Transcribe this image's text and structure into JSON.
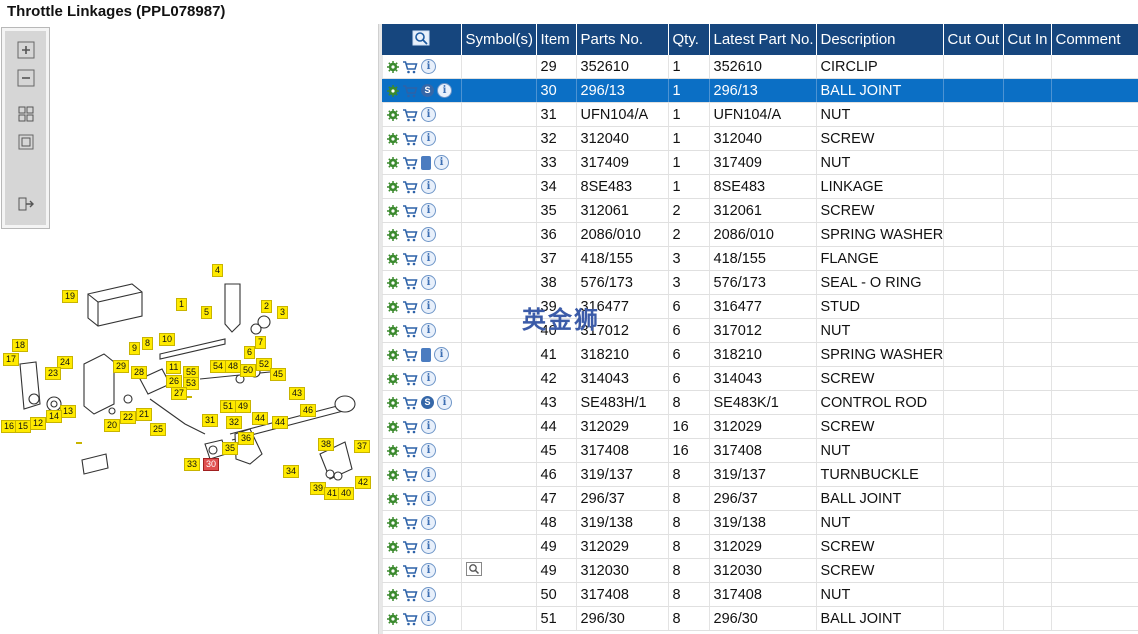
{
  "title": "Throttle Linkages (PPL078987)",
  "watermark": "英金狮",
  "toolbar": {
    "icons": [
      "zoom-in-icon",
      "zoom-out-icon",
      "fit-page-icon",
      "actual-size-icon",
      "export-icon"
    ]
  },
  "diagram": {
    "callouts": [
      "1",
      "2",
      "3",
      "4",
      "5",
      "6",
      "7",
      "8",
      "9",
      "10",
      "11",
      "12",
      "13",
      "14",
      "15",
      "16",
      "17",
      "18",
      "19",
      "20",
      "21",
      "22",
      "23",
      "24",
      "25",
      "26",
      "27",
      "28",
      "29",
      "30",
      "31",
      "32",
      "33",
      "34",
      "35",
      "36",
      "37",
      "38",
      "39",
      "40",
      "41",
      "42",
      "43",
      "44",
      "45",
      "45",
      "46",
      "47",
      "48",
      "49",
      "50",
      "51",
      "52",
      "53",
      "54",
      "55"
    ]
  },
  "table": {
    "headers": [
      "",
      "Symbol(s)",
      "Item",
      "Parts No.",
      "Qty.",
      "Latest Part No.",
      "Description",
      "Cut Out",
      "Cut In",
      "Comment"
    ],
    "rows": [
      {
        "icons": [
          "gear",
          "cart",
          "info"
        ],
        "symbol": "",
        "item": "29",
        "part": "352610",
        "qty": "1",
        "latest": "352610",
        "desc": "CIRCLIP",
        "selected": false
      },
      {
        "icons": [
          "gear",
          "cart",
          "s",
          "info"
        ],
        "symbol": "",
        "item": "30",
        "part": "296/13",
        "qty": "1",
        "latest": "296/13",
        "desc": "BALL JOINT",
        "selected": true
      },
      {
        "icons": [
          "gear",
          "cart",
          "info"
        ],
        "symbol": "",
        "item": "31",
        "part": "UFN104/A",
        "qty": "1",
        "latest": "UFN104/A",
        "desc": "NUT",
        "selected": false
      },
      {
        "icons": [
          "gear",
          "cart",
          "info"
        ],
        "symbol": "",
        "item": "32",
        "part": "312040",
        "qty": "1",
        "latest": "312040",
        "desc": "SCREW",
        "selected": false
      },
      {
        "icons": [
          "gear",
          "cart",
          "book",
          "info"
        ],
        "symbol": "",
        "item": "33",
        "part": "317409",
        "qty": "1",
        "latest": "317409",
        "desc": "NUT",
        "selected": false
      },
      {
        "icons": [
          "gear",
          "cart",
          "info"
        ],
        "symbol": "",
        "item": "34",
        "part": "8SE483",
        "qty": "1",
        "latest": "8SE483",
        "desc": "LINKAGE",
        "selected": false
      },
      {
        "icons": [
          "gear",
          "cart",
          "info"
        ],
        "symbol": "",
        "item": "35",
        "part": "312061",
        "qty": "2",
        "latest": "312061",
        "desc": "SCREW",
        "selected": false
      },
      {
        "icons": [
          "gear",
          "cart",
          "info"
        ],
        "symbol": "",
        "item": "36",
        "part": "2086/010",
        "qty": "2",
        "latest": "2086/010",
        "desc": "SPRING WASHER",
        "selected": false
      },
      {
        "icons": [
          "gear",
          "cart",
          "info"
        ],
        "symbol": "",
        "item": "37",
        "part": "418/155",
        "qty": "3",
        "latest": "418/155",
        "desc": "FLANGE",
        "selected": false
      },
      {
        "icons": [
          "gear",
          "cart",
          "info"
        ],
        "symbol": "",
        "item": "38",
        "part": "576/173",
        "qty": "3",
        "latest": "576/173",
        "desc": "SEAL - O RING",
        "selected": false
      },
      {
        "icons": [
          "gear",
          "cart",
          "info"
        ],
        "symbol": "",
        "item": "39",
        "part": "316477",
        "qty": "6",
        "latest": "316477",
        "desc": "STUD",
        "selected": false
      },
      {
        "icons": [
          "gear",
          "cart",
          "info"
        ],
        "symbol": "",
        "item": "40",
        "part": "317012",
        "qty": "6",
        "latest": "317012",
        "desc": "NUT",
        "selected": false
      },
      {
        "icons": [
          "gear",
          "cart",
          "book",
          "info"
        ],
        "symbol": "",
        "item": "41",
        "part": "318210",
        "qty": "6",
        "latest": "318210",
        "desc": "SPRING WASHER",
        "selected": false
      },
      {
        "icons": [
          "gear",
          "cart",
          "info"
        ],
        "symbol": "",
        "item": "42",
        "part": "314043",
        "qty": "6",
        "latest": "314043",
        "desc": "SCREW",
        "selected": false
      },
      {
        "icons": [
          "gear",
          "cart",
          "s",
          "info"
        ],
        "symbol": "",
        "item": "43",
        "part": "SE483H/1",
        "qty": "8",
        "latest": "SE483K/1",
        "desc": "CONTROL ROD",
        "selected": false
      },
      {
        "icons": [
          "gear",
          "cart",
          "info"
        ],
        "symbol": "",
        "item": "44",
        "part": "312029",
        "qty": "16",
        "latest": "312029",
        "desc": "SCREW",
        "selected": false
      },
      {
        "icons": [
          "gear",
          "cart",
          "info"
        ],
        "symbol": "",
        "item": "45",
        "part": "317408",
        "qty": "16",
        "latest": "317408",
        "desc": "NUT",
        "selected": false
      },
      {
        "icons": [
          "gear",
          "cart",
          "info"
        ],
        "symbol": "",
        "item": "46",
        "part": "319/137",
        "qty": "8",
        "latest": "319/137",
        "desc": "TURNBUCKLE",
        "selected": false
      },
      {
        "icons": [
          "gear",
          "cart",
          "info"
        ],
        "symbol": "",
        "item": "47",
        "part": "296/37",
        "qty": "8",
        "latest": "296/37",
        "desc": "BALL JOINT",
        "selected": false
      },
      {
        "icons": [
          "gear",
          "cart",
          "info"
        ],
        "symbol": "",
        "item": "48",
        "part": "319/138",
        "qty": "8",
        "latest": "319/138",
        "desc": "NUT",
        "selected": false
      },
      {
        "icons": [
          "gear",
          "cart",
          "info"
        ],
        "symbol": "",
        "item": "49",
        "part": "312029",
        "qty": "8",
        "latest": "312029",
        "desc": "SCREW",
        "selected": false
      },
      {
        "icons": [
          "gear",
          "cart",
          "info"
        ],
        "symbol": "magnifier",
        "item": "49",
        "part": "312030",
        "qty": "8",
        "latest": "312030",
        "desc": "SCREW",
        "selected": false
      },
      {
        "icons": [
          "gear",
          "cart",
          "info"
        ],
        "symbol": "",
        "item": "50",
        "part": "317408",
        "qty": "8",
        "latest": "317408",
        "desc": "NUT",
        "selected": false
      },
      {
        "icons": [
          "gear",
          "cart",
          "info"
        ],
        "symbol": "",
        "item": "51",
        "part": "296/30",
        "qty": "8",
        "latest": "296/30",
        "desc": "BALL JOINT",
        "selected": false
      }
    ]
  },
  "colors": {
    "header": "#16467e",
    "selected": "#0b6fc5",
    "callout": "#ffea00",
    "callout_selected": "#e05050"
  }
}
